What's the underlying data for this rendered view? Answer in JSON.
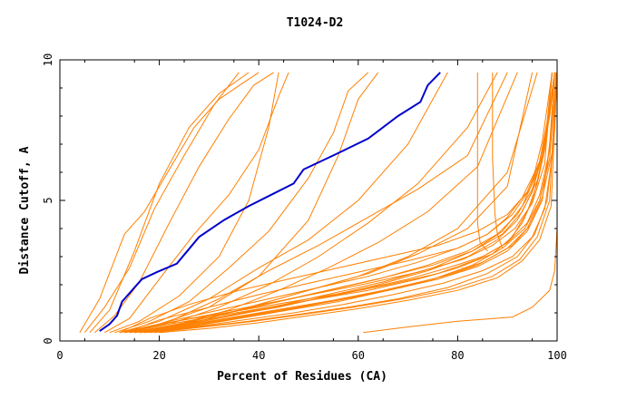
{
  "chart_data": {
    "type": "line",
    "title": "T1024-D2",
    "xlabel": "Percent of Residues (CA)",
    "ylabel": "Distance Cutoff, A",
    "xlim": [
      0,
      100
    ],
    "ylim": [
      0,
      10
    ],
    "x_ticks": [
      0,
      20,
      40,
      60,
      80,
      100
    ],
    "y_ticks": [
      0,
      5,
      10
    ],
    "x_tick_labels": [
      "0",
      "20",
      "40",
      "60",
      "80",
      "100"
    ],
    "y_tick_labels": [
      "0",
      "5",
      "10"
    ],
    "grid": false,
    "colors": {
      "highlight": "#0000cc",
      "others": "#ff8000"
    },
    "highlight": {
      "x": [
        8,
        10,
        11.5,
        12.5,
        14.5,
        16.5,
        19.5,
        23.5,
        28,
        33,
        38,
        42.5,
        47,
        49,
        55,
        62,
        68,
        72.5,
        74,
        76.5
      ],
      "y": [
        0.35,
        0.6,
        0.9,
        1.4,
        1.8,
        2.2,
        2.45,
        2.75,
        3.7,
        4.3,
        4.8,
        5.2,
        5.6,
        6.1,
        6.6,
        7.2,
        8.0,
        8.5,
        9.1,
        9.55
      ]
    },
    "series": [
      {
        "x": [
          4,
          8,
          13,
          17,
          22,
          27,
          32,
          37,
          40
        ],
        "y": [
          0.3,
          1.5,
          3.8,
          4.6,
          6.1,
          7.6,
          8.6,
          9.2,
          9.55
        ]
      },
      {
        "x": [
          5,
          9,
          14,
          19,
          25,
          31,
          36
        ],
        "y": [
          0.3,
          1.2,
          2.6,
          4.7,
          6.6,
          8.4,
          9.55
        ]
      },
      {
        "x": [
          7,
          11,
          16,
          22,
          28,
          34,
          39,
          43
        ],
        "y": [
          0.3,
          0.9,
          2.1,
          4.2,
          6.2,
          7.9,
          9.1,
          9.55
        ]
      },
      {
        "x": [
          6,
          10,
          15,
          20,
          26,
          32,
          38
        ],
        "y": [
          0.3,
          1.1,
          3.2,
          5.6,
          7.6,
          8.8,
          9.55
        ]
      },
      {
        "x": [
          9,
          14,
          20,
          27,
          34,
          40,
          44,
          46
        ],
        "y": [
          0.3,
          0.8,
          2.2,
          3.8,
          5.2,
          6.8,
          8.7,
          9.55
        ]
      },
      {
        "x": [
          10,
          16,
          24,
          32,
          38,
          42,
          44
        ],
        "y": [
          0.3,
          0.7,
          1.6,
          3.0,
          5.0,
          7.6,
          9.55
        ]
      },
      {
        "x": [
          11,
          18,
          26,
          34,
          42,
          50,
          55,
          58,
          62
        ],
        "y": [
          0.3,
          0.7,
          1.4,
          2.6,
          3.9,
          5.8,
          7.4,
          8.9,
          9.55
        ]
      },
      {
        "x": [
          12,
          20,
          30,
          40,
          50,
          56,
          60,
          64
        ],
        "y": [
          0.3,
          0.6,
          1.2,
          2.3,
          4.3,
          6.6,
          8.6,
          9.55
        ]
      },
      {
        "x": [
          12,
          20,
          30,
          40,
          50,
          60,
          70,
          78
        ],
        "y": [
          0.3,
          0.7,
          1.5,
          2.6,
          3.6,
          5.0,
          7.0,
          9.55
        ]
      },
      {
        "x": [
          13,
          22,
          32,
          42,
          52,
          62,
          72,
          82,
          88
        ],
        "y": [
          0.3,
          0.6,
          1.2,
          2.0,
          3.0,
          4.2,
          5.6,
          7.6,
          9.55
        ]
      },
      {
        "x": [
          13,
          22,
          32,
          42,
          52,
          62,
          72,
          82,
          90
        ],
        "y": [
          0.3,
          0.7,
          1.5,
          2.5,
          3.4,
          4.4,
          5.4,
          6.6,
          9.55
        ]
      },
      {
        "x": [
          14,
          24,
          34,
          44,
          54,
          64,
          74,
          84,
          92
        ],
        "y": [
          0.3,
          0.6,
          1.1,
          1.8,
          2.6,
          3.5,
          4.6,
          6.2,
          9.55
        ]
      },
      {
        "x": [
          14,
          24,
          36,
          48,
          60,
          70,
          80,
          90,
          96
        ],
        "y": [
          0.3,
          0.6,
          1.1,
          1.7,
          2.3,
          3.0,
          4.0,
          6.0,
          9.55
        ]
      },
      {
        "x": [
          15,
          26,
          38,
          50,
          62,
          72,
          82,
          90,
          95
        ],
        "y": [
          0.3,
          0.6,
          1.2,
          1.8,
          2.4,
          3.1,
          4.0,
          5.5,
          9.55
        ]
      },
      {
        "x": [
          84,
          84,
          84,
          84.5,
          86
        ],
        "y": [
          9.55,
          6.0,
          4.2,
          3.5,
          3.2
        ]
      },
      {
        "x": [
          87,
          87,
          87.5,
          88,
          89
        ],
        "y": [
          9.55,
          6.5,
          4.5,
          3.8,
          3.3
        ]
      },
      {
        "x": [
          61,
          70,
          80,
          91,
          95,
          98.5,
          99.5,
          100,
          100
        ],
        "y": [
          0.3,
          0.5,
          0.7,
          0.85,
          1.2,
          1.8,
          2.5,
          4.0,
          9.55
        ]
      },
      {
        "x": [
          12,
          20,
          30,
          40,
          50,
          60,
          70,
          78,
          85,
          90,
          93,
          95,
          96.5,
          97.5,
          98.5,
          99
        ],
        "y": [
          0.3,
          0.6,
          0.9,
          1.2,
          1.5,
          1.8,
          2.2,
          2.6,
          3.0,
          3.5,
          4.2,
          5.0,
          6.0,
          7.0,
          8.5,
          9.55
        ]
      },
      {
        "x": [
          13,
          22,
          32,
          42,
          52,
          62,
          72,
          80,
          87,
          91,
          94,
          96,
          97.5,
          98.5,
          99.5
        ],
        "y": [
          0.3,
          0.6,
          0.9,
          1.2,
          1.5,
          1.8,
          2.2,
          2.6,
          3.1,
          3.7,
          4.6,
          5.6,
          6.8,
          8.2,
          9.55
        ]
      },
      {
        "x": [
          14,
          24,
          34,
          44,
          54,
          64,
          74,
          82,
          88,
          92,
          95,
          97,
          98.5,
          99.5
        ],
        "y": [
          0.3,
          0.6,
          0.9,
          1.2,
          1.6,
          2.0,
          2.5,
          3.0,
          3.6,
          4.3,
          5.3,
          6.6,
          8.2,
          9.55
        ]
      },
      {
        "x": [
          15,
          25,
          35,
          45,
          55,
          65,
          75,
          83,
          89,
          93,
          96,
          98,
          99.5
        ],
        "y": [
          0.3,
          0.6,
          0.95,
          1.3,
          1.7,
          2.1,
          2.6,
          3.2,
          3.9,
          4.8,
          6.0,
          7.6,
          9.55
        ]
      },
      {
        "x": [
          16,
          26,
          36,
          46,
          56,
          66,
          76,
          84,
          90,
          94,
          96.5,
          98,
          99,
          100
        ],
        "y": [
          0.3,
          0.5,
          0.8,
          1.1,
          1.4,
          1.8,
          2.2,
          2.7,
          3.3,
          4.0,
          5.0,
          6.2,
          7.8,
          9.55
        ]
      },
      {
        "x": [
          14,
          22,
          32,
          42,
          52,
          62,
          72,
          80,
          86,
          90,
          93,
          95.5,
          97,
          98,
          99
        ],
        "y": [
          0.3,
          0.7,
          1.1,
          1.5,
          1.9,
          2.3,
          2.8,
          3.3,
          3.8,
          4.4,
          5.1,
          6.0,
          7.1,
          8.3,
          9.55
        ]
      },
      {
        "x": [
          15,
          24,
          34,
          44,
          54,
          64,
          74,
          82,
          88,
          92,
          95,
          97,
          98.5,
          99.5
        ],
        "y": [
          0.3,
          0.6,
          1.0,
          1.4,
          1.8,
          2.2,
          2.7,
          3.2,
          3.8,
          4.5,
          5.4,
          6.6,
          8.0,
          9.55
        ]
      },
      {
        "x": [
          16,
          26,
          36,
          46,
          56,
          66,
          76,
          84,
          90,
          94,
          97,
          98.5,
          99.5
        ],
        "y": [
          0.3,
          0.55,
          0.85,
          1.15,
          1.45,
          1.8,
          2.2,
          2.65,
          3.2,
          3.9,
          5.0,
          7.0,
          9.55
        ]
      },
      {
        "x": [
          17,
          27,
          37,
          47,
          57,
          67,
          77,
          85,
          91,
          95,
          97.5,
          99,
          100
        ],
        "y": [
          0.3,
          0.5,
          0.75,
          1.0,
          1.3,
          1.65,
          2.05,
          2.5,
          3.0,
          3.7,
          4.7,
          6.5,
          9.55
        ]
      },
      {
        "x": [
          12,
          18,
          26,
          36,
          46,
          56,
          66,
          76,
          84,
          90,
          94,
          96.5,
          98,
          99
        ],
        "y": [
          0.3,
          0.8,
          1.3,
          1.8,
          2.2,
          2.6,
          3.0,
          3.4,
          3.9,
          4.5,
          5.3,
          6.4,
          7.8,
          9.55
        ]
      },
      {
        "x": [
          13,
          20,
          30,
          40,
          50,
          60,
          70,
          80,
          86,
          91,
          94.5,
          97,
          98.5,
          99.5
        ],
        "y": [
          0.3,
          0.75,
          1.2,
          1.65,
          2.05,
          2.45,
          2.85,
          3.3,
          3.8,
          4.5,
          5.4,
          6.6,
          8.0,
          9.55
        ]
      },
      {
        "x": [
          18,
          28,
          38,
          48,
          58,
          68,
          78,
          86,
          92,
          95.5,
          98,
          99.5,
          100
        ],
        "y": [
          0.3,
          0.5,
          0.7,
          0.95,
          1.2,
          1.5,
          1.9,
          2.4,
          3.0,
          3.8,
          5.0,
          7.5,
          9.55
        ]
      },
      {
        "x": [
          15,
          25,
          35,
          45,
          55,
          65,
          75,
          83,
          89,
          93,
          96,
          98,
          99
        ],
        "y": [
          0.3,
          0.65,
          1.05,
          1.45,
          1.85,
          2.25,
          2.7,
          3.2,
          3.8,
          4.6,
          5.7,
          7.3,
          9.55
        ]
      },
      {
        "x": [
          16,
          26,
          36,
          46,
          56,
          66,
          76,
          84,
          90,
          94,
          96.5,
          98.5,
          99.5
        ],
        "y": [
          0.3,
          0.6,
          0.95,
          1.3,
          1.65,
          2.0,
          2.4,
          2.9,
          3.5,
          4.2,
          5.2,
          6.8,
          9.55
        ]
      },
      {
        "x": [
          17,
          27,
          37,
          47,
          57,
          67,
          77,
          85,
          91,
          94.5,
          97,
          99,
          100
        ],
        "y": [
          0.3,
          0.55,
          0.85,
          1.15,
          1.5,
          1.85,
          2.3,
          2.8,
          3.4,
          4.1,
          5.1,
          6.7,
          9.55
        ]
      },
      {
        "x": [
          14,
          22,
          32,
          42,
          52,
          62,
          72,
          81,
          87,
          91.5,
          95,
          97.5,
          99
        ],
        "y": [
          0.3,
          0.65,
          1.0,
          1.35,
          1.7,
          2.05,
          2.45,
          2.9,
          3.4,
          4.0,
          4.9,
          6.3,
          9.55
        ]
      },
      {
        "x": [
          16,
          25,
          35,
          45,
          55,
          65,
          75,
          83,
          89,
          93.5,
          96.5,
          98.5,
          99.8
        ],
        "y": [
          0.3,
          0.55,
          0.85,
          1.15,
          1.45,
          1.8,
          2.2,
          2.7,
          3.3,
          4.0,
          5.0,
          6.5,
          9.55
        ]
      },
      {
        "x": [
          19,
          29,
          39,
          49,
          59,
          69,
          79,
          87,
          92.5,
          96,
          98.5,
          99.8
        ],
        "y": [
          0.3,
          0.5,
          0.7,
          0.95,
          1.2,
          1.5,
          1.85,
          2.3,
          2.9,
          3.7,
          5.0,
          9.55
        ]
      },
      {
        "x": [
          20,
          30,
          40,
          50,
          60,
          70,
          80,
          88,
          93,
          96.5,
          98.8,
          100
        ],
        "y": [
          0.3,
          0.45,
          0.65,
          0.9,
          1.15,
          1.45,
          1.8,
          2.25,
          2.85,
          3.6,
          4.8,
          9.55
        ]
      }
    ]
  }
}
